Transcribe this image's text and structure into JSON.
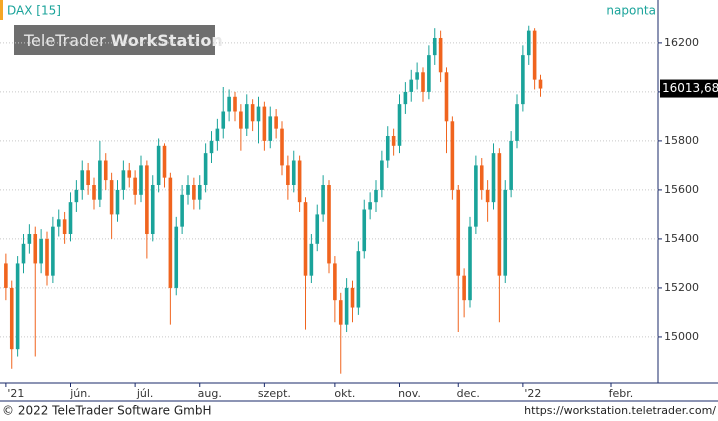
{
  "chart_data": {
    "type": "candlestick",
    "title": "DAX [15]",
    "interval": "naponta",
    "watermark": {
      "light": "TeleTrader",
      "bold": "WorkStation"
    },
    "footer_left": "© 2022 TeleTrader Software GmbH",
    "footer_right": "https://workstation.teletrader.com/",
    "up_color": "#1aa39a",
    "down_color": "#f0641e",
    "ylim": [
      14812,
      16375
    ],
    "yticks": [
      15000,
      15200,
      15400,
      15600,
      15800,
      16000,
      16200
    ],
    "xlim": [
      -1,
      111
    ],
    "xticks": [
      {
        "value": 0,
        "label": "'21"
      },
      {
        "value": 11,
        "label": "jún."
      },
      {
        "value": 22,
        "label": "júl."
      },
      {
        "value": 33,
        "label": "aug."
      },
      {
        "value": 44,
        "label": "szept."
      },
      {
        "value": 56,
        "label": "okt."
      },
      {
        "value": 67,
        "label": "nov."
      },
      {
        "value": 77,
        "label": "dec."
      },
      {
        "value": 88,
        "label": "'22"
      },
      {
        "value": 103,
        "label": "febr."
      }
    ],
    "last_price": {
      "value": 16013.68,
      "label": "16013,68"
    },
    "grid": true,
    "open": [
      15300,
      15200,
      14950,
      15300,
      15380,
      15420,
      15300,
      15400,
      15250,
      15450,
      15480,
      15420,
      15550,
      15600,
      15680,
      15620,
      15560,
      15720,
      15640,
      15500,
      15600,
      15680,
      15650,
      15580,
      15700,
      15420,
      15620,
      15780,
      15650,
      15200,
      15450,
      15580,
      15620,
      15560,
      15620,
      15750,
      15800,
      15850,
      15920,
      15980,
      15920,
      15850,
      15950,
      15880,
      15940,
      15800,
      15900,
      15850,
      15700,
      15620,
      15720,
      15550,
      15250,
      15380,
      15500,
      15620,
      15300,
      15150,
      15050,
      15200,
      15120,
      15350,
      15520,
      15550,
      15600,
      15720,
      15820,
      15780,
      15950,
      16000,
      16050,
      16080,
      16000,
      16150,
      16220,
      16080,
      15880,
      15600,
      15250,
      15150,
      15450,
      15700,
      15600,
      15550,
      15750,
      15250,
      15600,
      15800,
      15950,
      16150,
      16250,
      16050
    ],
    "high": [
      15340,
      15230,
      15330,
      15420,
      15460,
      15450,
      15440,
      15430,
      15490,
      15520,
      15510,
      15590,
      15640,
      15720,
      15710,
      15650,
      15800,
      15750,
      15670,
      15640,
      15720,
      15710,
      15680,
      15740,
      15720,
      15660,
      15810,
      15790,
      15670,
      15490,
      15620,
      15660,
      15650,
      15660,
      15790,
      15840,
      15890,
      16020,
      16010,
      16000,
      15950,
      15990,
      15970,
      15980,
      15960,
      15940,
      15930,
      15880,
      15740,
      15760,
      15740,
      15570,
      15420,
      15540,
      15660,
      15640,
      15330,
      15180,
      15240,
      15230,
      15390,
      15560,
      15590,
      15640,
      15760,
      15860,
      15850,
      15990,
      16040,
      16090,
      16120,
      16100,
      16190,
      16260,
      16250,
      16100,
      15900,
      15620,
      15280,
      15490,
      15740,
      15730,
      15640,
      15790,
      15770,
      15640,
      15840,
      15990,
      16190,
      16270,
      16260,
      16070
    ],
    "low": [
      15150,
      14870,
      14920,
      15260,
      15340,
      14920,
      15260,
      15210,
      15220,
      15410,
      15380,
      15390,
      15510,
      15560,
      15580,
      15520,
      15530,
      15600,
      15400,
      15470,
      15560,
      15610,
      15540,
      15550,
      15320,
      15390,
      15590,
      15610,
      15050,
      15170,
      15420,
      15540,
      15520,
      15520,
      15590,
      15710,
      15760,
      15810,
      15880,
      15880,
      15760,
      15820,
      15840,
      15790,
      15760,
      15770,
      15810,
      15660,
      15560,
      15590,
      15510,
      15030,
      15220,
      15350,
      15470,
      15260,
      15060,
      14850,
      15020,
      15060,
      15090,
      15320,
      15480,
      15510,
      15570,
      15690,
      15740,
      15750,
      15910,
      15960,
      16010,
      15960,
      15970,
      16110,
      16040,
      15750,
      15560,
      15020,
      15080,
      15120,
      15420,
      15560,
      15470,
      15520,
      15060,
      15220,
      15570,
      15770,
      15920,
      16110,
      16010,
      15980
    ],
    "close": [
      15200,
      14950,
      15300,
      15380,
      15420,
      15300,
      15400,
      15250,
      15450,
      15480,
      15420,
      15550,
      15600,
      15680,
      15620,
      15560,
      15720,
      15640,
      15500,
      15600,
      15680,
      15650,
      15580,
      15700,
      15420,
      15620,
      15780,
      15650,
      15200,
      15450,
      15580,
      15620,
      15560,
      15620,
      15750,
      15800,
      15850,
      15920,
      15980,
      15920,
      15850,
      15950,
      15880,
      15940,
      15800,
      15900,
      15850,
      15700,
      15620,
      15720,
      15550,
      15250,
      15380,
      15500,
      15620,
      15300,
      15150,
      15050,
      15200,
      15120,
      15350,
      15520,
      15550,
      15600,
      15720,
      15820,
      15780,
      15950,
      16000,
      16050,
      16080,
      16000,
      16150,
      16220,
      16080,
      15880,
      15600,
      15250,
      15150,
      15450,
      15700,
      15600,
      15550,
      15750,
      15250,
      15600,
      15800,
      15950,
      16150,
      16250,
      16050,
      16013.68
    ]
  }
}
